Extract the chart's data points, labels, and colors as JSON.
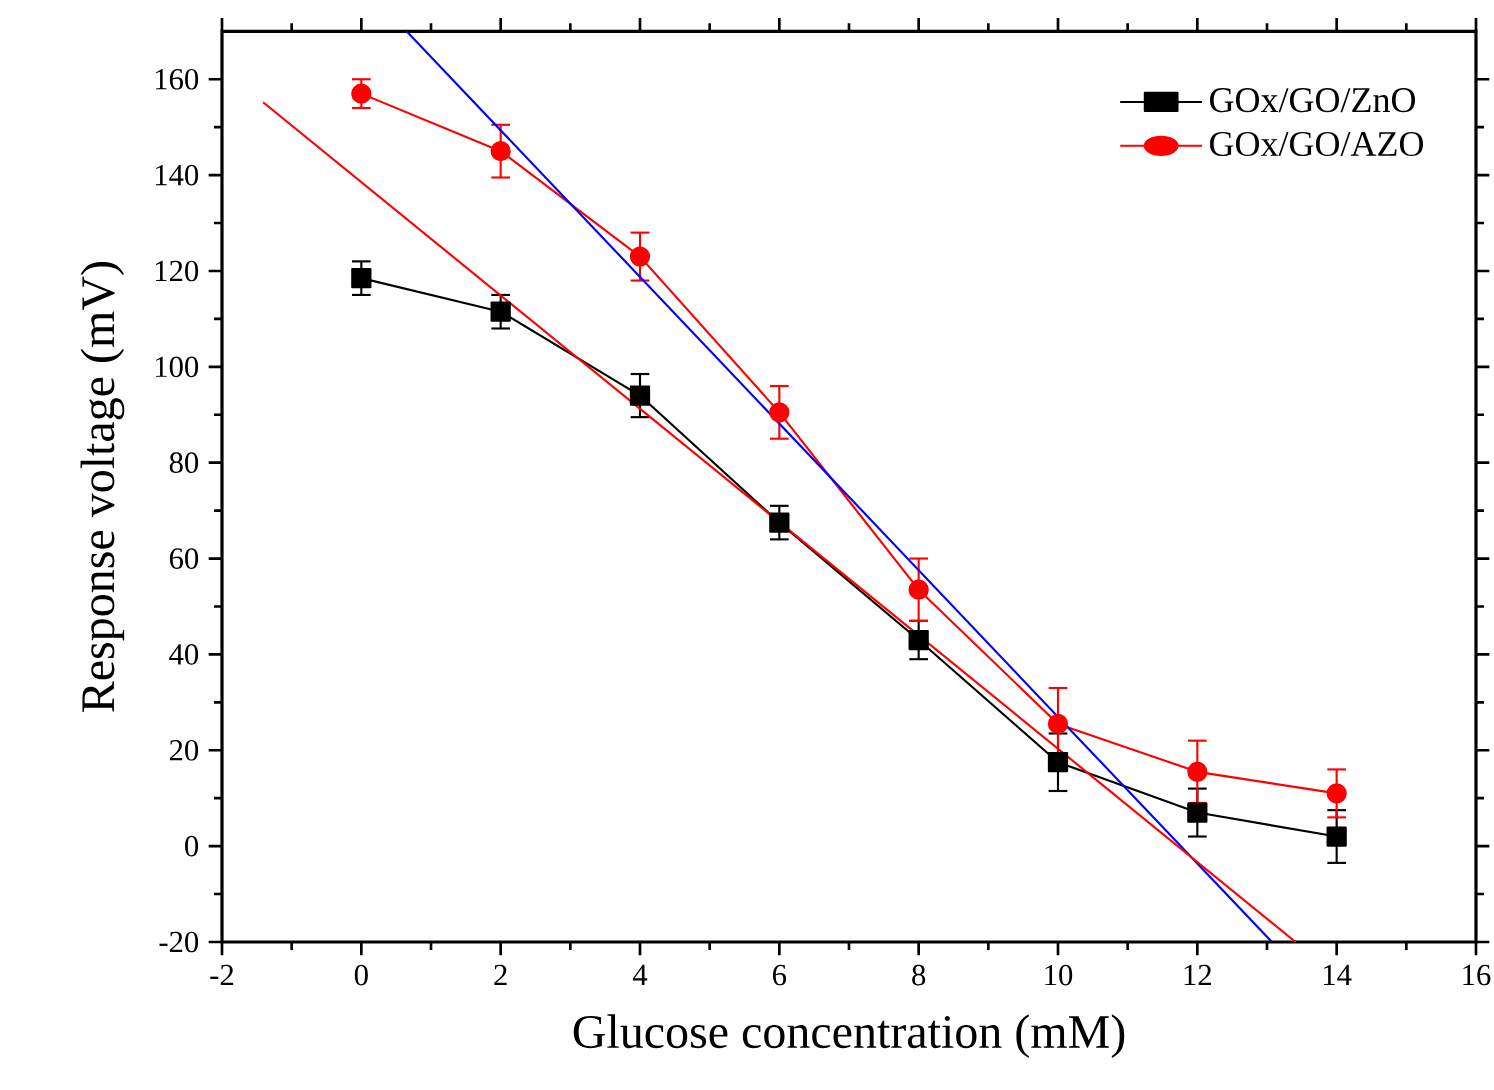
{
  "chart_data": {
    "type": "line",
    "xlabel": "Glucose concentration (mM)",
    "ylabel": "Response voltage (mV)",
    "xlim": [
      -2,
      16
    ],
    "xticks": [
      -2,
      0,
      2,
      4,
      6,
      8,
      10,
      12,
      14,
      16
    ],
    "ylim": [
      -20,
      170
    ],
    "yticks": [
      -20,
      0,
      20,
      40,
      60,
      80,
      100,
      120,
      140,
      160
    ],
    "grid": false,
    "legend": "top right",
    "line_style": "solid",
    "series": [
      {
        "name": "GOx/GO/ZnO",
        "color": "#000000",
        "marker": "square",
        "x": [
          0,
          2,
          4,
          6,
          8,
          10,
          12,
          14
        ],
        "values": [
          118.5,
          111.5,
          94,
          67.5,
          43,
          17.5,
          7,
          2
        ],
        "errors": [
          3.5,
          3.5,
          4.5,
          3.5,
          4,
          6,
          5,
          5.5
        ]
      },
      {
        "name": "GOx/GO/AZO",
        "color": "#ff0000",
        "marker": "circle",
        "x": [
          0,
          2,
          4,
          6,
          8,
          10,
          12,
          14
        ],
        "values": [
          157,
          145,
          123,
          90.5,
          53.5,
          25.5,
          15.5,
          11
        ],
        "errors": [
          3,
          5.5,
          5,
          5.5,
          6.5,
          7.5,
          6.5,
          5
        ]
      },
      {
        "color": "#0000ff",
        "marker": "none",
        "x": [
          0.65,
          13.07
        ],
        "values": [
          170,
          -20
        ]
      },
      {
        "color": "#ff0000",
        "marker": "none",
        "x": [
          -1.41,
          13.41
        ],
        "values": [
          155.2,
          -20
        ]
      }
    ]
  }
}
